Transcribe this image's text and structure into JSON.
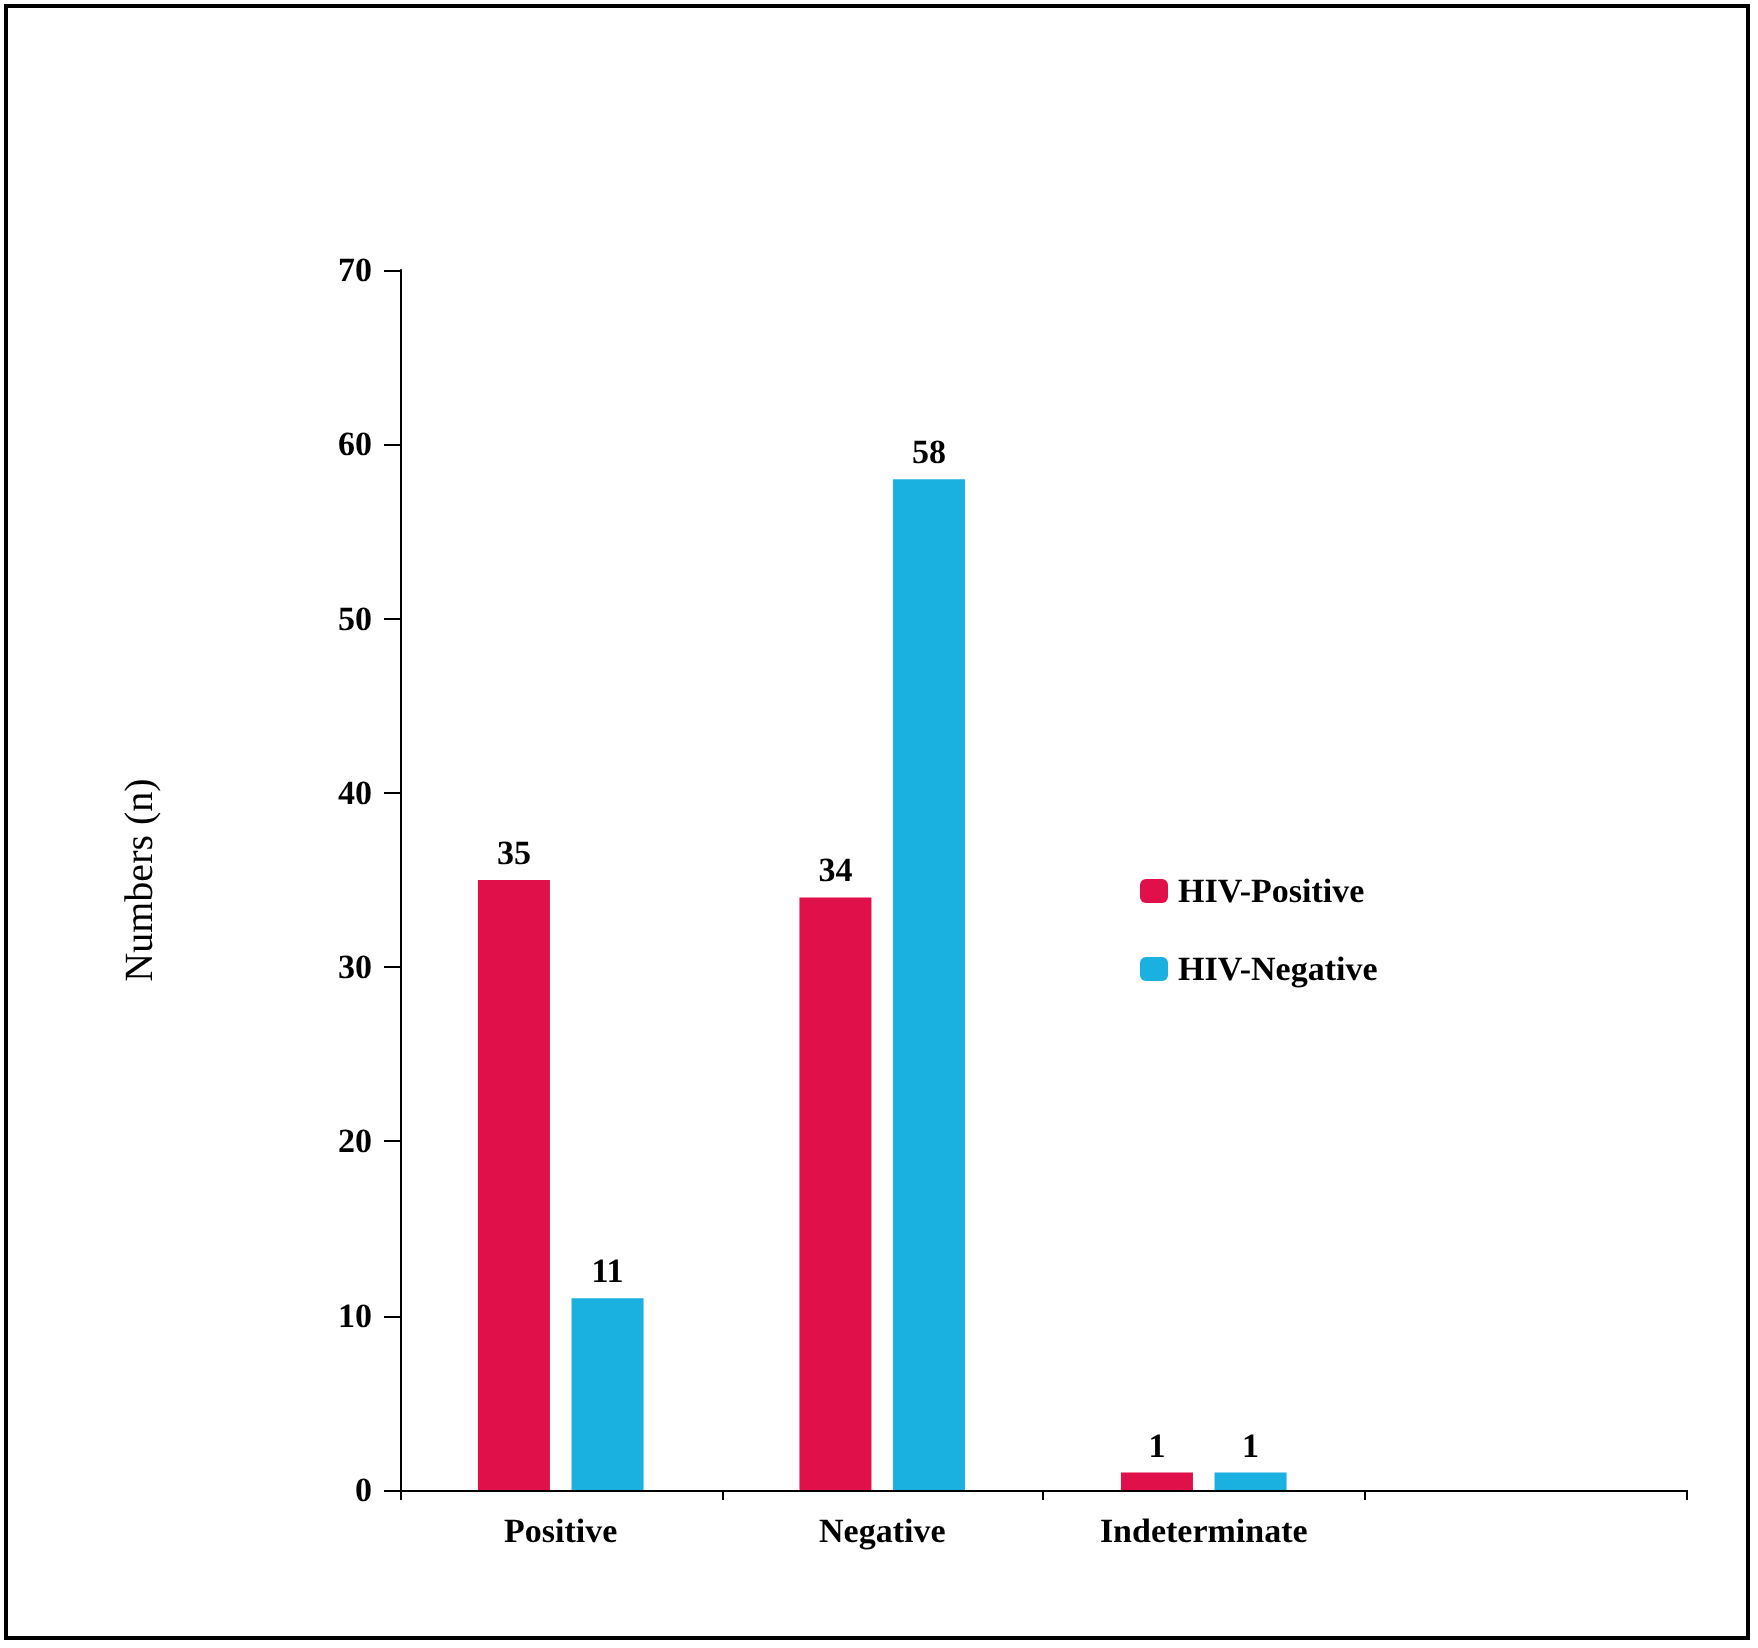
{
  "chart_data": {
    "type": "bar",
    "ylabel": "Numbers (n)",
    "categories": [
      "Positive",
      "Negative",
      "Indeterminate",
      null
    ],
    "series": [
      {
        "name": "HIV-Positive",
        "color": "#e0104a",
        "values": [
          35,
          34,
          1,
          null
        ]
      },
      {
        "name": "HIV-Negative",
        "color": "#1ab0e0",
        "values": [
          11,
          58,
          1,
          null
        ]
      }
    ],
    "ylim": [
      0,
      70
    ],
    "yticks": [
      0,
      10,
      20,
      30,
      40,
      50,
      60,
      70
    ],
    "grid": false,
    "legend": "right",
    "data_labels": true
  }
}
